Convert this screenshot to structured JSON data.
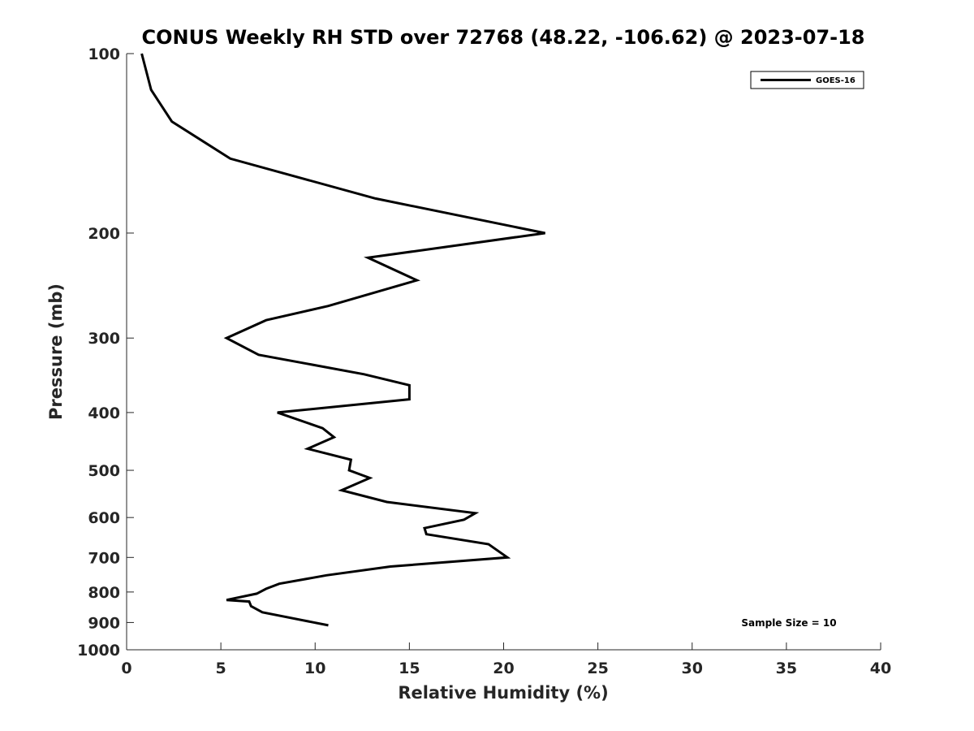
{
  "chart_data": {
    "type": "line",
    "title": "CONUS Weekly RH STD over 72768 (48.22, -106.62) @ 2023-07-18",
    "xlabel": "Relative Humidity (%)",
    "ylabel": "Pressure (mb)",
    "xlim": [
      0,
      40
    ],
    "ylim": [
      100,
      1000
    ],
    "yscale": "log",
    "y_reversed": true,
    "x_ticks": [
      0,
      5,
      10,
      15,
      20,
      25,
      30,
      35,
      40
    ],
    "y_ticks": [
      100,
      200,
      300,
      400,
      500,
      600,
      700,
      800,
      900,
      1000
    ],
    "grid": false,
    "legend_position": "top-right",
    "series": [
      {
        "name": "GOES-16",
        "color": "#000000",
        "x": [
          0.8,
          1.3,
          2.4,
          5.5,
          13.2,
          22.2,
          12.8,
          15.4,
          10.7,
          7.4,
          5.3,
          7.0,
          12.6,
          15.0,
          15.0,
          8.0,
          10.4,
          11.0,
          9.6,
          11.9,
          11.8,
          12.9,
          11.4,
          13.8,
          18.5,
          17.9,
          15.8,
          15.9,
          19.2,
          20.2,
          14.0,
          10.6,
          8.1,
          7.4,
          6.9,
          5.3,
          6.5,
          6.6,
          7.2,
          10.7
        ],
        "y": [
          100,
          115,
          130,
          150,
          175,
          200,
          220,
          240,
          265,
          280,
          300,
          320,
          345,
          360,
          380,
          400,
          425,
          440,
          460,
          480,
          500,
          515,
          540,
          565,
          590,
          605,
          625,
          640,
          665,
          700,
          725,
          750,
          775,
          790,
          805,
          825,
          830,
          845,
          865,
          910
        ]
      }
    ],
    "annotations": [
      "Sample Size = 10"
    ]
  }
}
